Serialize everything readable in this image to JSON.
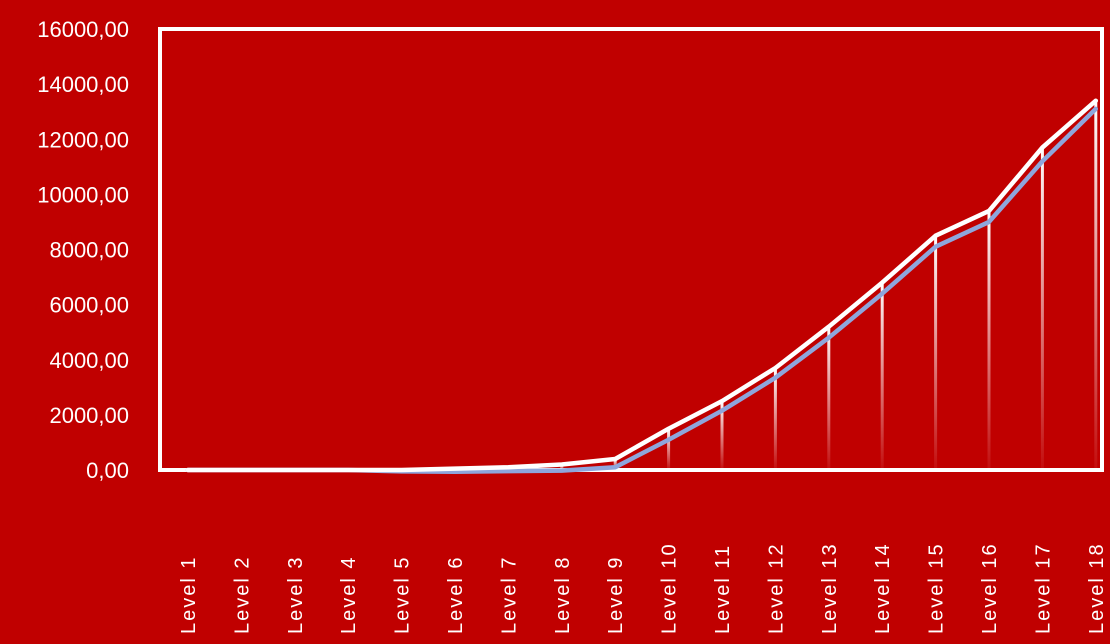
{
  "chart_data": {
    "type": "line",
    "title": "",
    "xlabel": "",
    "ylabel": "",
    "categories": [
      "Level 1",
      "Level 2",
      "Level 3",
      "Level 4",
      "Level 5",
      "Level 6",
      "Level 7",
      "Level 8",
      "Level 9",
      "Level 10",
      "Level 11",
      "Level 12",
      "Level 13",
      "Level 14",
      "Level 15",
      "Level 16",
      "Level 17",
      "Level 18"
    ],
    "y_ticks": [
      "0,00",
      "2000,00",
      "4000,00",
      "6000,00",
      "8000,00",
      "10000,00",
      "12000,00",
      "14000,00",
      "16000,00"
    ],
    "ylim": [
      0,
      16000
    ],
    "grid": false,
    "legend": "none",
    "series": [
      {
        "values": [
          0,
          0,
          0,
          0,
          0,
          50,
          100,
          200,
          400,
          1500,
          2500,
          3700,
          5200,
          6800,
          8500,
          9400,
          11700,
          13400
        ]
      },
      {
        "values": [
          0,
          0,
          0,
          0,
          -50,
          -60,
          -40,
          -20,
          100,
          1100,
          2150,
          3350,
          4800,
          6400,
          8100,
          9000,
          11200,
          13100
        ]
      }
    ],
    "colors": {
      "background": "#c00000",
      "frame": "#ffffff",
      "text": "#ffffff",
      "series_1": "#ffffff",
      "series_2": "#8ea6dc",
      "drop_lines": "#ffffff"
    }
  }
}
